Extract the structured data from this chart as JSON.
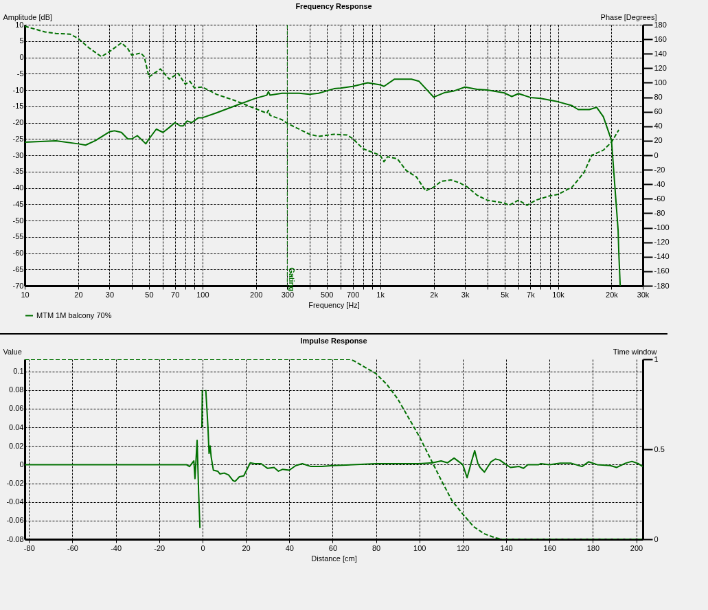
{
  "chart_data": [
    {
      "type": "line",
      "title": "Frequency Response",
      "xlabel": "Frequency [Hz]",
      "ylabel": "Amplitude [dB]",
      "y2label": "Phase [Degrees]",
      "log": "x",
      "grid": true,
      "legend": "bottom left",
      "xlim": [
        10,
        30000
      ],
      "xticks": [
        10,
        20,
        30,
        {
          "value": 40,
          "label": null
        },
        50,
        {
          "value": 60,
          "label": null
        },
        70,
        {
          "value": 80,
          "label": null
        },
        {
          "value": 90,
          "label": null
        },
        100,
        200,
        300,
        {
          "value": 400,
          "label": null
        },
        500,
        {
          "value": 600,
          "label": null
        },
        700,
        {
          "value": 800,
          "label": null
        },
        {
          "value": 900,
          "label": null
        },
        {
          "value": 1000,
          "label": "1k"
        },
        {
          "value": 2000,
          "label": "2k"
        },
        {
          "value": 3000,
          "label": "3k"
        },
        {
          "value": 4000,
          "label": null
        },
        {
          "value": 5000,
          "label": "5k"
        },
        {
          "value": 6000,
          "label": null
        },
        {
          "value": 7000,
          "label": "7k"
        },
        {
          "value": 8000,
          "label": null
        },
        {
          "value": 9000,
          "label": null
        },
        {
          "value": 10000,
          "label": "10k"
        },
        {
          "value": 20000,
          "label": "20k"
        },
        {
          "value": 30000,
          "label": "30k"
        }
      ],
      "ylim": [
        -70,
        10
      ],
      "yticks": [
        -70,
        -65,
        -60,
        -55,
        -50,
        -45,
        -40,
        -35,
        -30,
        -25,
        -20,
        -15,
        -10,
        -5,
        0,
        5,
        10
      ],
      "y2lim": [
        -180,
        180
      ],
      "y2ticks": [
        -180,
        -160,
        -140,
        -120,
        -100,
        -80,
        -60,
        -40,
        -20,
        0,
        20,
        40,
        60,
        80,
        100,
        120,
        140,
        160,
        180
      ],
      "ref_lines": [
        {
          "axis": "x",
          "value": 300,
          "label": "Gating",
          "color": "#007000"
        }
      ],
      "series": [
        {
          "name": "MTM 1M balcony 70%",
          "color": "#007000",
          "line_style": "solid",
          "x": [
            10,
            15,
            20,
            22,
            25,
            30,
            32,
            35,
            38,
            40,
            43,
            46,
            48,
            50,
            55,
            60,
            65,
            70,
            75,
            78,
            82,
            87,
            95,
            100,
            120,
            150,
            200,
            230,
            235,
            240,
            280,
            350,
            400,
            450,
            550,
            600,
            700,
            850,
            1000,
            1050,
            1200,
            1500,
            1650,
            2000,
            2300,
            2600,
            3000,
            3500,
            4000,
            5000,
            5500,
            6000,
            7000,
            8000,
            10000,
            12000,
            13000,
            15000,
            16500,
            18000,
            20000,
            21800,
            22000,
            22400
          ],
          "values": [
            -26,
            -25.6,
            -26.5,
            -26.9,
            -25.5,
            -22.8,
            -22.5,
            -23,
            -25,
            -25,
            -24,
            -25.5,
            -26.5,
            -25,
            -22,
            -23,
            -21.5,
            -20,
            -21,
            -21,
            -19.5,
            -20,
            -18.5,
            -18.5,
            -17,
            -15,
            -12.5,
            -11.6,
            -10.5,
            -11.6,
            -11,
            -11,
            -11.3,
            -11,
            -9.6,
            -9.4,
            -8.9,
            -7.8,
            -8.4,
            -8.9,
            -6.7,
            -6.7,
            -7.3,
            -12.2,
            -10.8,
            -10.3,
            -9.1,
            -9.8,
            -10,
            -10.9,
            -12,
            -11.1,
            -12.3,
            -12.6,
            -13.6,
            -14.8,
            -16,
            -16,
            -15.3,
            -18.2,
            -25.4,
            -53,
            -60,
            -70
          ]
        },
        {
          "color": "#007000",
          "axis": "y2",
          "line_style": "dashed",
          "x": [
            10,
            13,
            15,
            18,
            20,
            23,
            27,
            30,
            35,
            38,
            40,
            45,
            47,
            50,
            55,
            58,
            65,
            73,
            80,
            85,
            90,
            100,
            120,
            150,
            200,
            230,
            235,
            240,
            280,
            300,
            400,
            450,
            550,
            650,
            700,
            800,
            1000,
            1050,
            1100,
            1250,
            1400,
            1600,
            1800,
            2000,
            2200,
            2500,
            2800,
            3100,
            3500,
            4000,
            5000,
            5300,
            6000,
            6700,
            7500,
            9000,
            10000,
            12000,
            14000,
            15500,
            18000,
            20000,
            22000
          ],
          "values": [
            178,
            170,
            168,
            167,
            161,
            148,
            136,
            143,
            155,
            147,
            138,
            141,
            136,
            108,
            115,
            119,
            105,
            113,
            98,
            102,
            93,
            94,
            84,
            76,
            64,
            58,
            62,
            55,
            49,
            44,
            29,
            26,
            29,
            28,
            23,
            9,
            0,
            -9,
            -2,
            -5,
            -21,
            -30,
            -49,
            -44,
            -36,
            -34,
            -38,
            -44,
            -55,
            -62,
            -66,
            -69,
            -62,
            -69,
            -62,
            -56,
            -54,
            -44,
            -24,
            0,
            7,
            18,
            35
          ]
        }
      ]
    },
    {
      "type": "line",
      "title": "Impulse Response",
      "xlabel": "Distance [cm]",
      "ylabel": "Value",
      "y2label": "Time window",
      "grid": true,
      "xlim": [
        -82,
        203
      ],
      "xticks": [
        -80,
        -60,
        -40,
        -20,
        0,
        20,
        40,
        60,
        80,
        100,
        120,
        140,
        160,
        180,
        200
      ],
      "ylim": [
        -0.08,
        0.113
      ],
      "yticks": [
        -0.08,
        -0.06,
        -0.04,
        -0.02,
        0,
        0.02,
        0.04,
        0.06,
        0.08,
        0.1
      ],
      "y2lim": [
        0,
        1
      ],
      "y2ticks": [
        0,
        0.5,
        1
      ],
      "series": [
        {
          "color": "#007000",
          "line_style": "solid",
          "x": [
            -82,
            -7.5,
            -6,
            -4,
            -3.5,
            -2.5,
            -1.8,
            -1.2,
            -0.8,
            -0.3,
            -0.1,
            0.3,
            1,
            1.5,
            2,
            2.5,
            3,
            3.5,
            4,
            5,
            7,
            8,
            10,
            12,
            14,
            15,
            17,
            19,
            22,
            24,
            27,
            30,
            33,
            35,
            37,
            40,
            43,
            46,
            50,
            55,
            60,
            80,
            100,
            106,
            110,
            113,
            116,
            120,
            122,
            124,
            125.5,
            127,
            128,
            130,
            133,
            135,
            137,
            140,
            142,
            146,
            148,
            150,
            155,
            156,
            160,
            165,
            170,
            175,
            178,
            182,
            188,
            191,
            195,
            198,
            201,
            203
          ],
          "values": [
            0,
            0,
            -0.002,
            0.004,
            -0.015,
            0.026,
            -0.03,
            -0.068,
            null,
            0.04,
            0.08,
            null,
            null,
            0.08,
            0.06,
            0.04,
            0.012,
            0.02,
            0.008,
            -0.006,
            -0.007,
            -0.01,
            -0.009,
            -0.011,
            -0.017,
            -0.018,
            -0.013,
            -0.012,
            0.002,
            0.001,
            0.001,
            -0.004,
            -0.003,
            -0.007,
            -0.005,
            -0.006,
            -0.001,
            0.001,
            -0.002,
            -0.002,
            -0.001,
            0.001,
            0.001,
            0.002,
            0.004,
            0.002,
            0.007,
            0,
            -0.014,
            0.003,
            0.015,
            0.001,
            -0.003,
            -0.008,
            0.003,
            0.006,
            0.005,
            0,
            -0.003,
            -0.002,
            -0.004,
            0,
            0,
            0.001,
            0,
            0.0015,
            0.0015,
            -0.002,
            0.003,
            0,
            -0.001,
            -0.003,
            0.0015,
            0.0035,
            0.001,
            -0.002
          ]
        },
        {
          "color": "#007000",
          "axis": "y2",
          "line_style": "dashed",
          "x": [
            -82,
            68,
            70,
            75,
            80,
            85,
            90,
            95,
            100,
            105,
            110,
            115,
            120,
            125,
            130,
            135,
            138,
            203
          ],
          "values": [
            1,
            1,
            0.99,
            0.955,
            0.92,
            0.86,
            0.78,
            0.675,
            0.57,
            0.45,
            0.33,
            0.215,
            0.14,
            0.07,
            0.03,
            0.008,
            0,
            0
          ]
        }
      ]
    }
  ]
}
